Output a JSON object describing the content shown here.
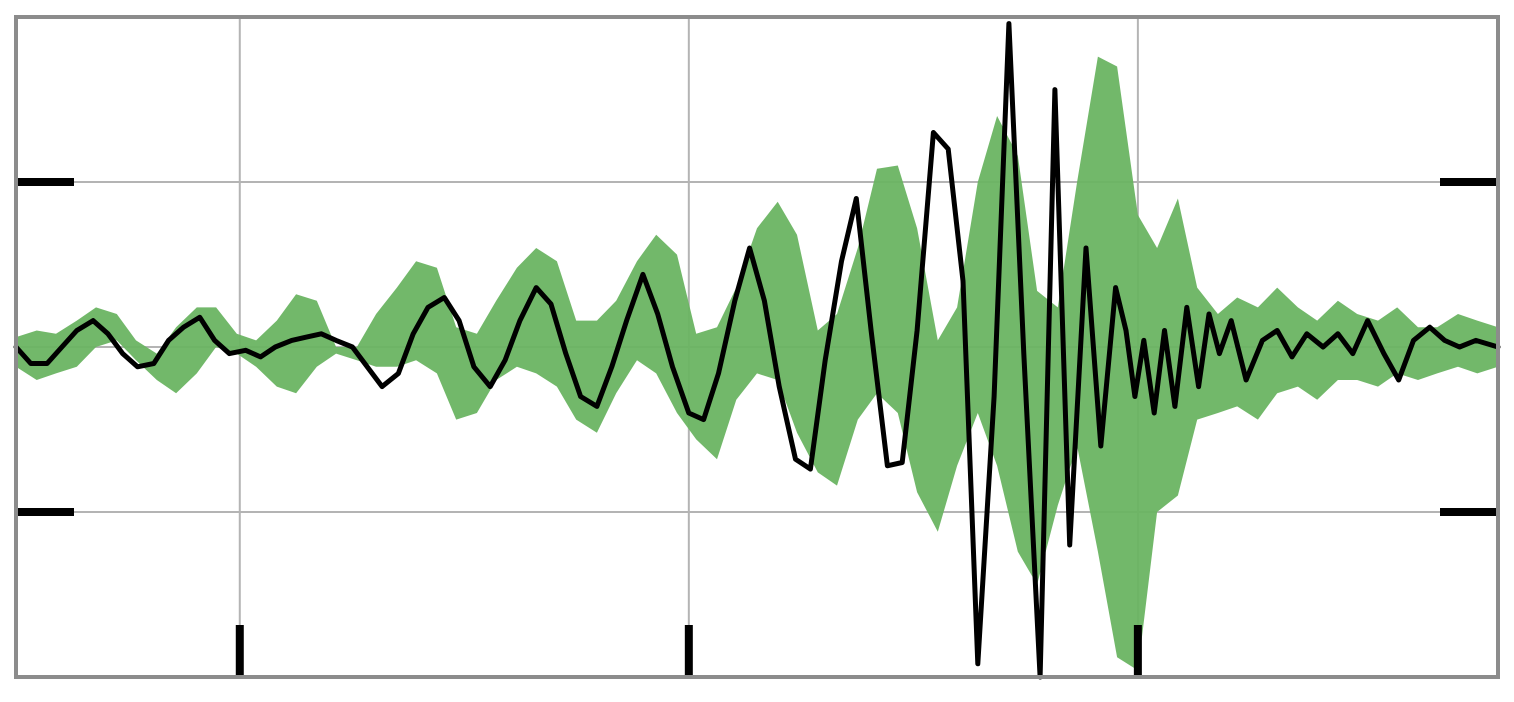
{
  "chart_data": {
    "type": "line",
    "title": "",
    "xlabel": "",
    "ylabel": "",
    "xlim": [
      0,
      1
    ],
    "ylim": [
      -1,
      1
    ],
    "x_ticks": [
      0.151,
      0.454,
      0.757
    ],
    "y_ticks": [
      -0.5,
      0,
      0.5
    ],
    "grid": true,
    "legend": "none",
    "colors": {
      "band": "#6ab462",
      "line": "#000000",
      "grid": "#b4b4b4",
      "frame": "#8c8c8c"
    },
    "series": [
      {
        "role": "band",
        "x": [
          0.0,
          0.014,
          0.027,
          0.041,
          0.054,
          0.068,
          0.081,
          0.095,
          0.108,
          0.122,
          0.135,
          0.149,
          0.162,
          0.176,
          0.189,
          0.203,
          0.216,
          0.23,
          0.243,
          0.257,
          0.27,
          0.284,
          0.297,
          0.311,
          0.324,
          0.338,
          0.351,
          0.365,
          0.378,
          0.392,
          0.405,
          0.419,
          0.432,
          0.446,
          0.459,
          0.473,
          0.486,
          0.5,
          0.514,
          0.527,
          0.541,
          0.554,
          0.568,
          0.581,
          0.595,
          0.608,
          0.622,
          0.635,
          0.649,
          0.662,
          0.676,
          0.689,
          0.703,
          0.716,
          0.73,
          0.743,
          0.757,
          0.77,
          0.784,
          0.797,
          0.811,
          0.824,
          0.838,
          0.851,
          0.865,
          0.878,
          0.892,
          0.905,
          0.919,
          0.932,
          0.946,
          0.959,
          0.973,
          0.986,
          1.0
        ],
        "upper": [
          0.03,
          0.05,
          0.04,
          0.08,
          0.12,
          0.1,
          0.02,
          -0.02,
          0.06,
          0.12,
          0.12,
          0.04,
          0.02,
          0.08,
          0.16,
          0.14,
          0.0,
          0.0,
          0.1,
          0.18,
          0.26,
          0.24,
          0.06,
          0.04,
          0.14,
          0.24,
          0.3,
          0.26,
          0.08,
          0.08,
          0.14,
          0.26,
          0.34,
          0.28,
          0.04,
          0.06,
          0.18,
          0.36,
          0.44,
          0.34,
          0.05,
          0.1,
          0.3,
          0.54,
          0.55,
          0.36,
          0.02,
          0.12,
          0.5,
          0.7,
          0.58,
          0.17,
          0.12,
          0.5,
          0.88,
          0.85,
          0.4,
          0.3,
          0.45,
          0.18,
          0.1,
          0.15,
          0.12,
          0.18,
          0.12,
          0.08,
          0.14,
          0.1,
          0.08,
          0.12,
          0.06,
          0.06,
          0.1,
          0.08,
          0.06
        ],
        "lower": [
          -0.06,
          -0.1,
          -0.08,
          -0.06,
          0.0,
          0.02,
          -0.04,
          -0.1,
          -0.14,
          -0.08,
          0.0,
          -0.02,
          -0.06,
          -0.12,
          -0.14,
          -0.06,
          -0.02,
          -0.04,
          -0.06,
          -0.06,
          -0.04,
          -0.08,
          -0.22,
          -0.2,
          -0.1,
          -0.06,
          -0.08,
          -0.12,
          -0.22,
          -0.26,
          -0.14,
          -0.04,
          -0.08,
          -0.2,
          -0.28,
          -0.34,
          -0.16,
          -0.08,
          -0.1,
          -0.26,
          -0.38,
          -0.42,
          -0.22,
          -0.14,
          -0.2,
          -0.44,
          -0.56,
          -0.36,
          -0.2,
          -0.36,
          -0.62,
          -0.72,
          -0.48,
          -0.3,
          -0.62,
          -0.94,
          -0.98,
          -0.5,
          -0.45,
          -0.22,
          -0.2,
          -0.18,
          -0.22,
          -0.14,
          -0.12,
          -0.16,
          -0.1,
          -0.1,
          -0.12,
          -0.08,
          -0.1,
          -0.08,
          -0.06,
          -0.08,
          -0.06
        ]
      },
      {
        "role": "line",
        "x": [
          0.0,
          0.01,
          0.021,
          0.031,
          0.041,
          0.052,
          0.062,
          0.072,
          0.082,
          0.093,
          0.103,
          0.113,
          0.124,
          0.134,
          0.144,
          0.155,
          0.165,
          0.175,
          0.186,
          0.196,
          0.206,
          0.216,
          0.227,
          0.237,
          0.247,
          0.258,
          0.268,
          0.278,
          0.289,
          0.299,
          0.309,
          0.32,
          0.33,
          0.34,
          0.351,
          0.361,
          0.371,
          0.381,
          0.392,
          0.402,
          0.412,
          0.423,
          0.433,
          0.443,
          0.454,
          0.464,
          0.474,
          0.485,
          0.495,
          0.505,
          0.515,
          0.526,
          0.536,
          0.546,
          0.557,
          0.567,
          0.577,
          0.588,
          0.598,
          0.608,
          0.619,
          0.629,
          0.639,
          0.649,
          0.66,
          0.67,
          0.68,
          0.691,
          0.701,
          0.711,
          0.722,
          0.732,
          0.742,
          0.749,
          0.755,
          0.761,
          0.768,
          0.775,
          0.782,
          0.79,
          0.798,
          0.805,
          0.812,
          0.82,
          0.83,
          0.841,
          0.851,
          0.861,
          0.871,
          0.882,
          0.892,
          0.902,
          0.912,
          0.923,
          0.933,
          0.943,
          0.954,
          0.964,
          0.974,
          0.985,
          1.0
        ],
        "y": [
          0.0,
          -0.05,
          -0.05,
          0.0,
          0.05,
          0.08,
          0.04,
          -0.02,
          -0.06,
          -0.05,
          0.02,
          0.06,
          0.09,
          0.02,
          -0.02,
          -0.01,
          -0.03,
          0.0,
          0.02,
          0.03,
          0.04,
          0.02,
          0.0,
          -0.06,
          -0.12,
          -0.08,
          0.04,
          0.12,
          0.15,
          0.08,
          -0.06,
          -0.12,
          -0.04,
          0.08,
          0.18,
          0.13,
          -0.02,
          -0.15,
          -0.18,
          -0.06,
          0.08,
          0.22,
          0.1,
          -0.06,
          -0.2,
          -0.22,
          -0.08,
          0.14,
          0.3,
          0.14,
          -0.12,
          -0.34,
          -0.37,
          -0.04,
          0.26,
          0.45,
          0.05,
          -0.36,
          -0.35,
          0.05,
          0.65,
          0.6,
          0.2,
          -0.96,
          -0.15,
          0.98,
          -0.02,
          -1.0,
          0.78,
          -0.6,
          0.3,
          -0.3,
          0.18,
          0.05,
          -0.15,
          0.02,
          -0.2,
          0.05,
          -0.18,
          0.12,
          -0.12,
          0.1,
          -0.02,
          0.08,
          -0.1,
          0.02,
          0.05,
          -0.03,
          0.04,
          0.0,
          0.04,
          -0.02,
          0.08,
          -0.02,
          -0.1,
          0.02,
          0.06,
          0.02,
          0.0,
          0.02,
          0.0
        ]
      }
    ]
  }
}
